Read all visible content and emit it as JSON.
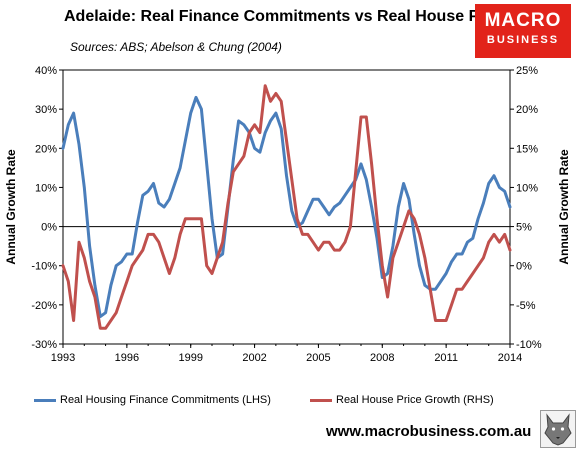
{
  "title": "Adelaide: Real Finance Commitments vs Real House Prices",
  "subtitle": "Sources: ABS; Abelson & Chung (2004)",
  "logo": {
    "line1": "MACRO",
    "line2": "BUSINESS",
    "bg_color": "#e2231a"
  },
  "footer": "www.macrobusiness.com.au",
  "chart_data": {
    "type": "line",
    "ylabel_left": "Annual Growth Rate",
    "ylabel_right": "Annual Growth Rate",
    "ylim_left": [
      -30,
      40
    ],
    "ylim_right": [
      -10,
      25
    ],
    "yticks_left": [
      "40%",
      "30%",
      "20%",
      "10%",
      "0%",
      "-10%",
      "-20%",
      "-30%"
    ],
    "yticks_right": [
      "25%",
      "20%",
      "15%",
      "10%",
      "5%",
      "0%",
      "-5%",
      "-10%"
    ],
    "xlim": [
      1993,
      2014
    ],
    "xticks": [
      "1993",
      "1996",
      "1999",
      "2002",
      "2005",
      "2008",
      "2011",
      "2014"
    ],
    "grid": false,
    "legend_position": "bottom",
    "series": [
      {
        "name": "Real Housing Finance Commitments (LHS)",
        "axis": "left",
        "color": "#4a7ebb",
        "x": [
          1993.0,
          1993.25,
          1993.5,
          1993.75,
          1994.0,
          1994.25,
          1994.5,
          1994.75,
          1995.0,
          1995.25,
          1995.5,
          1995.75,
          1996.0,
          1996.25,
          1996.5,
          1996.75,
          1997.0,
          1997.25,
          1997.5,
          1997.75,
          1998.0,
          1998.25,
          1998.5,
          1998.75,
          1999.0,
          1999.25,
          1999.5,
          1999.75,
          2000.0,
          2000.25,
          2000.5,
          2000.75,
          2001.0,
          2001.25,
          2001.5,
          2001.75,
          2002.0,
          2002.25,
          2002.5,
          2002.75,
          2003.0,
          2003.25,
          2003.5,
          2003.75,
          2004.0,
          2004.25,
          2004.5,
          2004.75,
          2005.0,
          2005.25,
          2005.5,
          2005.75,
          2006.0,
          2006.25,
          2006.5,
          2006.75,
          2007.0,
          2007.25,
          2007.5,
          2007.75,
          2008.0,
          2008.25,
          2008.5,
          2008.75,
          2009.0,
          2009.25,
          2009.5,
          2009.75,
          2010.0,
          2010.25,
          2010.5,
          2010.75,
          2011.0,
          2011.25,
          2011.5,
          2011.75,
          2012.0,
          2012.25,
          2012.5,
          2012.75,
          2013.0,
          2013.25,
          2013.5,
          2013.75,
          2014.0
        ],
        "values": [
          20,
          26,
          29,
          21,
          10,
          -5,
          -15,
          -23,
          -22,
          -15,
          -10,
          -9,
          -7,
          -7,
          1,
          8,
          9,
          11,
          6,
          5,
          7,
          11,
          15,
          22,
          29,
          33,
          30,
          16,
          2,
          -8,
          -7,
          5,
          17,
          27,
          26,
          24,
          20,
          19,
          24,
          27,
          29,
          25,
          13,
          4,
          0,
          1,
          4,
          7,
          7,
          5,
          3,
          5,
          6,
          8,
          10,
          12,
          16,
          12,
          5,
          -3,
          -13,
          -12,
          -5,
          5,
          11,
          7,
          -2,
          -10,
          -15,
          -16,
          -16,
          -14,
          -12,
          -9,
          -7,
          -7,
          -4,
          -3,
          2,
          6,
          11,
          13,
          10,
          9,
          5
        ]
      },
      {
        "name": "Real House Price Growth (RHS)",
        "axis": "right",
        "color": "#c0504d",
        "x": [
          1993.0,
          1993.25,
          1993.5,
          1993.75,
          1994.0,
          1994.25,
          1994.5,
          1994.75,
          1995.0,
          1995.25,
          1995.5,
          1995.75,
          1996.0,
          1996.25,
          1996.5,
          1996.75,
          1997.0,
          1997.25,
          1997.5,
          1997.75,
          1998.0,
          1998.25,
          1998.5,
          1998.75,
          1999.0,
          1999.25,
          1999.5,
          1999.75,
          2000.0,
          2000.25,
          2000.5,
          2000.75,
          2001.0,
          2001.25,
          2001.5,
          2001.75,
          2002.0,
          2002.25,
          2002.5,
          2002.75,
          2003.0,
          2003.25,
          2003.5,
          2003.75,
          2004.0,
          2004.25,
          2004.5,
          2004.75,
          2005.0,
          2005.25,
          2005.5,
          2005.75,
          2006.0,
          2006.25,
          2006.5,
          2006.75,
          2007.0,
          2007.25,
          2007.5,
          2007.75,
          2008.0,
          2008.25,
          2008.5,
          2008.75,
          2009.0,
          2009.25,
          2009.5,
          2009.75,
          2010.0,
          2010.25,
          2010.5,
          2010.75,
          2011.0,
          2011.25,
          2011.5,
          2011.75,
          2012.0,
          2012.25,
          2012.5,
          2012.75,
          2013.0,
          2013.25,
          2013.5,
          2013.75,
          2014.0
        ],
        "values": [
          0,
          -2,
          -7,
          3,
          1,
          -2,
          -4,
          -8,
          -8,
          -7,
          -6,
          -4,
          -2,
          0,
          1,
          2,
          4,
          4,
          3,
          1,
          -1,
          1,
          4,
          6,
          6,
          6,
          6,
          0,
          -1,
          1,
          3,
          8,
          12,
          13,
          14,
          17,
          18,
          17,
          23,
          21,
          22,
          21,
          16,
          11,
          6,
          4,
          4,
          3,
          2,
          3,
          3,
          2,
          2,
          3,
          5,
          12,
          19,
          19,
          13,
          6,
          0,
          -4,
          1,
          3,
          5,
          7,
          6,
          4,
          1,
          -3,
          -7,
          -7,
          -7,
          -5,
          -3,
          -3,
          -2,
          -1,
          0,
          1,
          3,
          4,
          3,
          4,
          2
        ]
      }
    ]
  }
}
